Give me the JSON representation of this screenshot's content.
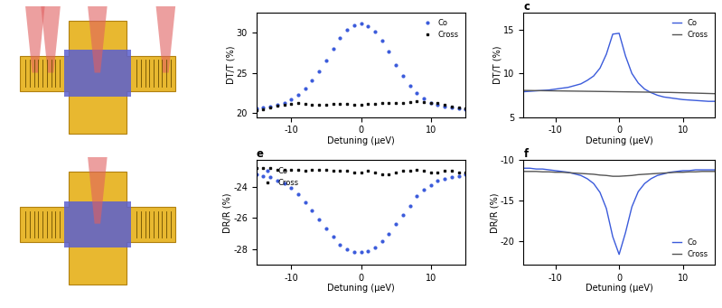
{
  "chart_data": [
    {
      "type": "scatter",
      "xlabel": "Detuning (μeV)",
      "ylabel": "DT/T (%)",
      "xlim": [
        -15,
        15
      ],
      "xticks": [
        -10,
        0,
        10
      ],
      "ylim": [
        19.5,
        32.5
      ],
      "yticks": [
        20,
        25,
        30
      ],
      "legend": "upper right",
      "x": [
        -15,
        -14,
        -13,
        -12,
        -11,
        -10,
        -9,
        -8,
        -7,
        -6,
        -5,
        -4,
        -3,
        -2,
        -1,
        0,
        1,
        2,
        3,
        4,
        5,
        6,
        7,
        8,
        9,
        10,
        11,
        12,
        13,
        14,
        15
      ],
      "series": [
        {
          "name": "Co",
          "color": "#3b5bdb",
          "marker": "o",
          "line_style": "none",
          "values": [
            20.6,
            20.7,
            20.8,
            21.0,
            21.3,
            21.7,
            22.3,
            23.0,
            24.0,
            25.2,
            26.5,
            28.0,
            29.3,
            30.3,
            30.9,
            31.1,
            30.8,
            30.1,
            29.0,
            27.6,
            26.0,
            24.6,
            23.4,
            22.5,
            21.8,
            21.3,
            21.0,
            20.8,
            20.7,
            20.6,
            20.5
          ]
        },
        {
          "name": "Cross",
          "color": "#111111",
          "marker": "s",
          "line_style": "none",
          "values": [
            20.4,
            20.5,
            20.7,
            20.9,
            21.0,
            21.1,
            21.2,
            21.1,
            21.0,
            21.0,
            21.0,
            21.1,
            21.1,
            21.1,
            21.0,
            21.0,
            21.1,
            21.1,
            21.2,
            21.2,
            21.3,
            21.3,
            21.4,
            21.5,
            21.4,
            21.3,
            21.2,
            21.0,
            20.8,
            20.7,
            20.6
          ]
        }
      ]
    },
    {
      "type": "line",
      "title": "c",
      "xlabel": "Detuning (μeV)",
      "ylabel": "DT/T (%)",
      "xlim": [
        -15,
        15
      ],
      "xticks": [
        -10,
        0,
        10
      ],
      "ylim": [
        5,
        17
      ],
      "yticks": [
        5,
        10,
        15
      ],
      "legend": "upper right",
      "x": [
        -15,
        -14,
        -13,
        -12,
        -11,
        -10,
        -9,
        -8,
        -7,
        -6,
        -5,
        -4,
        -3,
        -2,
        -1,
        0,
        1,
        2,
        3,
        4,
        5,
        6,
        7,
        8,
        9,
        10,
        11,
        12,
        13,
        14,
        15
      ],
      "series": [
        {
          "name": "Co",
          "color": "#3b5bdb",
          "marker": "none",
          "line_style": "solid",
          "values": [
            7.9,
            7.95,
            8.0,
            8.05,
            8.1,
            8.2,
            8.3,
            8.4,
            8.6,
            8.8,
            9.2,
            9.7,
            10.6,
            12.2,
            14.5,
            14.6,
            12.0,
            10.0,
            8.9,
            8.2,
            7.8,
            7.5,
            7.3,
            7.2,
            7.1,
            7.0,
            6.95,
            6.9,
            6.85,
            6.8,
            6.8
          ]
        },
        {
          "name": "Cross",
          "color": "#555555",
          "marker": "none",
          "line_style": "solid",
          "values": [
            8.05,
            8.04,
            8.03,
            8.02,
            8.01,
            8.0,
            7.99,
            7.98,
            7.97,
            7.96,
            7.95,
            7.94,
            7.93,
            7.92,
            7.91,
            7.9,
            7.89,
            7.88,
            7.87,
            7.86,
            7.85,
            7.84,
            7.83,
            7.82,
            7.8,
            7.78,
            7.76,
            7.74,
            7.72,
            7.7,
            7.68
          ]
        }
      ]
    },
    {
      "type": "scatter",
      "title": "e",
      "xlabel": "Detuning (μeV)",
      "ylabel": "DR/R (%)",
      "xlim": [
        -15,
        15
      ],
      "xticks": [
        -10,
        0,
        10
      ],
      "ylim": [
        -29,
        -22.3
      ],
      "yticks": [
        -28,
        -26,
        -24
      ],
      "legend": "upper left",
      "x": [
        -15,
        -14,
        -13,
        -12,
        -11,
        -10,
        -9,
        -8,
        -7,
        -6,
        -5,
        -4,
        -3,
        -2,
        -1,
        0,
        1,
        2,
        3,
        4,
        5,
        6,
        7,
        8,
        9,
        10,
        11,
        12,
        13,
        14,
        15
      ],
      "series": [
        {
          "name": "Co",
          "color": "#3b5bdb",
          "marker": "o",
          "line_style": "none",
          "values": [
            -23.2,
            -23.3,
            -23.4,
            -23.6,
            -23.8,
            -24.1,
            -24.5,
            -25.0,
            -25.5,
            -26.1,
            -26.7,
            -27.2,
            -27.7,
            -28.0,
            -28.2,
            -28.2,
            -28.1,
            -27.9,
            -27.5,
            -27.0,
            -26.4,
            -25.8,
            -25.2,
            -24.6,
            -24.2,
            -23.9,
            -23.6,
            -23.5,
            -23.4,
            -23.3,
            -23.2
          ]
        },
        {
          "name": "Cross",
          "color": "#111111",
          "marker": "s",
          "line_style": "none",
          "values": [
            -22.8,
            -22.8,
            -22.8,
            -22.9,
            -22.9,
            -22.9,
            -22.9,
            -23.0,
            -22.9,
            -22.9,
            -22.9,
            -23.0,
            -23.0,
            -23.0,
            -23.1,
            -23.1,
            -23.0,
            -23.1,
            -23.2,
            -23.2,
            -23.1,
            -23.0,
            -23.0,
            -22.9,
            -23.0,
            -23.1,
            -23.1,
            -23.0,
            -23.0,
            -23.1,
            -23.1
          ]
        }
      ]
    },
    {
      "type": "line",
      "title": "f",
      "xlabel": "Detuning (μeV)",
      "ylabel": "DR/R (%)",
      "xlim": [
        -15,
        15
      ],
      "xticks": [
        -10,
        0,
        10
      ],
      "ylim": [
        -23,
        -10
      ],
      "yticks": [
        -20,
        -15,
        -10
      ],
      "legend": "lower right",
      "x": [
        -15,
        -14,
        -13,
        -12,
        -11,
        -10,
        -9,
        -8,
        -7,
        -6,
        -5,
        -4,
        -3,
        -2,
        -1,
        0,
        1,
        2,
        3,
        4,
        5,
        6,
        7,
        8,
        9,
        10,
        11,
        12,
        13,
        14,
        15
      ],
      "series": [
        {
          "name": "Co",
          "color": "#3b5bdb",
          "marker": "none",
          "line_style": "solid",
          "values": [
            -11.0,
            -11.0,
            -11.1,
            -11.1,
            -11.2,
            -11.3,
            -11.4,
            -11.5,
            -11.7,
            -11.9,
            -12.3,
            -12.9,
            -14.0,
            -16.0,
            -19.5,
            -21.7,
            -19.0,
            -15.8,
            -13.9,
            -12.9,
            -12.3,
            -11.9,
            -11.7,
            -11.5,
            -11.4,
            -11.3,
            -11.3,
            -11.2,
            -11.2,
            -11.2,
            -11.2
          ]
        },
        {
          "name": "Cross",
          "color": "#555555",
          "marker": "none",
          "line_style": "solid",
          "values": [
            -11.4,
            -11.4,
            -11.4,
            -11.45,
            -11.45,
            -11.5,
            -11.5,
            -11.55,
            -11.6,
            -11.65,
            -11.7,
            -11.75,
            -11.85,
            -11.9,
            -12.0,
            -12.0,
            -11.95,
            -11.9,
            -11.8,
            -11.75,
            -11.7,
            -11.65,
            -11.6,
            -11.55,
            -11.5,
            -11.5,
            -11.45,
            -11.45,
            -11.4,
            -11.4,
            -11.4
          ]
        }
      ]
    }
  ]
}
